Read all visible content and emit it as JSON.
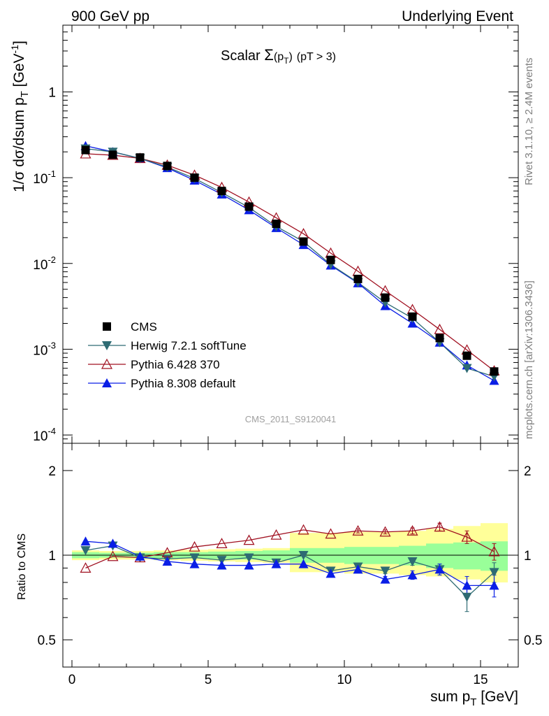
{
  "header": {
    "left_label": "900 GeV pp",
    "right_label": "Underlying Event"
  },
  "plot_title": {
    "main": "Scalar ",
    "sigma": "Σ",
    "paren_open": "(p",
    "sub_T": "T",
    "paren_close": ")",
    "cut": "(pT >  3)"
  },
  "analysis_id": "CMS_2011_S9120041",
  "side_labels": {
    "rivet": "Rivet 3.1.10, ≥ 2.4M events",
    "mcplots": "mcplots.cern.ch [arXiv:1306.3436]"
  },
  "axes": {
    "main_ylabel": "1/σ dσ/dsum p_T [GeV^-1]",
    "main_ylabel_parts": {
      "a": "1/σ dσ/dsum p",
      "sub": "T",
      "b": " [GeV",
      "sup": "-1",
      "c": "]"
    },
    "ratio_ylabel": "Ratio to CMS",
    "xlabel_parts": {
      "a": "sum p",
      "sub": "T",
      "b": " [GeV]"
    },
    "x_ticks": [
      "0",
      "5",
      "10",
      "15"
    ],
    "main_yticks": [
      {
        "base": "10",
        "exp": "-4",
        "value": 0.0001
      },
      {
        "base": "10",
        "exp": "-3",
        "value": 0.001
      },
      {
        "base": "10",
        "exp": "-2",
        "value": 0.01
      },
      {
        "base": "10",
        "exp": "-1",
        "value": 0.1
      },
      {
        "base": "1",
        "exp": "",
        "value": 1
      }
    ],
    "ratio_yticks": [
      "0.5",
      "1",
      "2"
    ]
  },
  "colors": {
    "cms": "#000000",
    "herwig": "#2e6b73",
    "pythia6": "#a01020",
    "pythia8": "#0a1ee6",
    "band_inner": "#99ff99",
    "band_outer": "#ffff99"
  },
  "chart_data": [
    {
      "type": "scatter",
      "panel": "main",
      "title": "Scalar Σ(p_T) (pT >  3)",
      "xlabel": "sum p_T [GeV]",
      "ylabel": "1/σ dσ/dsum p_T [GeV^-1]",
      "xlim": [
        -0.4,
        16.3
      ],
      "ylim": [
        8e-05,
        6
      ],
      "yscale": "log",
      "legend_position": "lower-left",
      "x": [
        0.5,
        1.5,
        2.5,
        3.5,
        4.5,
        5.5,
        6.5,
        7.5,
        8.5,
        9.5,
        10.5,
        11.5,
        12.5,
        13.5,
        14.5,
        15.5
      ],
      "series": [
        {
          "name": "CMS",
          "marker": "square",
          "values": [
            0.21,
            0.185,
            0.172,
            0.137,
            0.1,
            0.07,
            0.046,
            0.029,
            0.018,
            0.011,
            0.0066,
            0.004,
            0.0024,
            0.00135,
            0.00084,
            0.00055
          ]
        },
        {
          "name": "Herwig 7.2.1 softTune",
          "marker": "triangle-down",
          "values": [
            0.218,
            0.2,
            0.168,
            0.133,
            0.098,
            0.067,
            0.045,
            0.027,
            0.018,
            0.0097,
            0.006,
            0.0035,
            0.0023,
            0.0012,
            0.0006,
            0.00048
          ]
        },
        {
          "name": "Pythia 6.428 370",
          "marker": "triangle-open",
          "values": [
            0.19,
            0.183,
            0.168,
            0.14,
            0.107,
            0.077,
            0.052,
            0.034,
            0.0222,
            0.0132,
            0.0081,
            0.0048,
            0.0029,
            0.0017,
            0.00098,
            0.00056
          ]
        },
        {
          "name": "Pythia 8.308 default",
          "marker": "triangle-up",
          "values": [
            0.235,
            0.2,
            0.168,
            0.13,
            0.093,
            0.064,
            0.042,
            0.026,
            0.0165,
            0.0095,
            0.0059,
            0.0032,
            0.002,
            0.0012,
            0.00065,
            0.00043
          ]
        }
      ]
    },
    {
      "type": "line",
      "panel": "ratio",
      "ylabel": "Ratio to CMS",
      "xlim": [
        -0.4,
        16.3
      ],
      "ylim": [
        0.4,
        2.5
      ],
      "yscale": "log",
      "x": [
        0.5,
        1.5,
        2.5,
        3.5,
        4.5,
        5.5,
        6.5,
        7.5,
        8.5,
        9.5,
        10.5,
        11.5,
        12.5,
        13.5,
        14.5,
        15.5
      ],
      "bands": [
        {
          "name": "inner",
          "xedges": [
            0,
            1,
            2,
            3,
            4,
            5,
            6,
            7,
            8,
            9,
            10,
            11,
            12,
            13,
            14,
            15,
            16
          ],
          "lo": [
            0.975,
            0.98,
            0.98,
            0.975,
            0.975,
            0.97,
            0.965,
            0.96,
            0.94,
            0.94,
            0.93,
            0.93,
            0.92,
            0.9,
            0.89,
            0.88
          ],
          "hi": [
            1.025,
            1.02,
            1.02,
            1.025,
            1.025,
            1.03,
            1.035,
            1.04,
            1.06,
            1.06,
            1.07,
            1.07,
            1.08,
            1.1,
            1.11,
            1.12
          ]
        },
        {
          "name": "outer",
          "xedges": [
            0,
            1,
            2,
            3,
            4,
            5,
            6,
            7,
            8,
            9,
            10,
            11,
            12,
            13,
            14,
            15,
            16
          ],
          "lo": [
            0.96,
            0.965,
            0.965,
            0.96,
            0.955,
            0.95,
            0.945,
            0.94,
            0.87,
            0.87,
            0.86,
            0.86,
            0.85,
            0.84,
            0.82,
            0.8
          ],
          "hi": [
            1.04,
            1.035,
            1.035,
            1.04,
            1.045,
            1.05,
            1.055,
            1.06,
            1.2,
            1.2,
            1.21,
            1.21,
            1.22,
            1.24,
            1.27,
            1.3
          ]
        }
      ],
      "series": [
        {
          "name": "Herwig 7.2.1 softTune",
          "marker": "triangle-down",
          "values": [
            1.04,
            1.08,
            0.98,
            0.97,
            0.98,
            0.96,
            0.98,
            0.94,
            1.0,
            0.88,
            0.91,
            0.88,
            0.95,
            0.89,
            0.71,
            0.87
          ],
          "err": [
            0,
            0,
            0,
            0,
            0,
            0,
            0,
            0,
            0,
            0,
            0.02,
            0.02,
            0.03,
            0.04,
            0.08,
            0.07
          ]
        },
        {
          "name": "Pythia 6.428 370",
          "marker": "triangle-open",
          "values": [
            0.9,
            0.99,
            0.98,
            1.02,
            1.07,
            1.1,
            1.13,
            1.18,
            1.23,
            1.19,
            1.22,
            1.21,
            1.22,
            1.26,
            1.16,
            1.03
          ],
          "err": [
            0,
            0,
            0,
            0,
            0,
            0,
            0,
            0,
            0,
            0,
            0.02,
            0.02,
            0.03,
            0.04,
            0.06,
            0.07
          ]
        },
        {
          "name": "Pythia 8.308 default",
          "marker": "triangle-up",
          "values": [
            1.12,
            1.1,
            0.99,
            0.95,
            0.93,
            0.92,
            0.92,
            0.93,
            0.93,
            0.86,
            0.89,
            0.82,
            0.85,
            0.89,
            0.78,
            0.78
          ],
          "err": [
            0,
            0,
            0,
            0,
            0,
            0,
            0,
            0,
            0,
            0,
            0.02,
            0.02,
            0.03,
            0.04,
            0.06,
            0.07
          ]
        }
      ]
    }
  ]
}
